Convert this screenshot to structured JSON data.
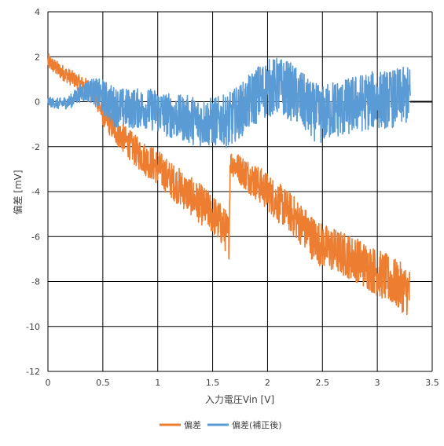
{
  "chart_data": {
    "type": "line",
    "xlabel": "入力電圧Vin [V]",
    "ylabel": "偏差 [mV]",
    "xlim": [
      0,
      3.5
    ],
    "ylim": [
      -12,
      4
    ],
    "x_ticks": [
      "0",
      "0.5",
      "1",
      "1.5",
      "2",
      "2.5",
      "3",
      "3.5"
    ],
    "y_ticks": [
      "4",
      "2",
      "0",
      "-2",
      "-4",
      "-6",
      "-8",
      "-10",
      "-12"
    ],
    "grid": true,
    "legend_position": "bottom",
    "series": [
      {
        "name": "偏差",
        "color": "#ED7D31",
        "x": [
          0,
          0.1,
          0.2,
          0.3,
          0.4,
          0.5,
          0.6,
          0.7,
          0.8,
          0.9,
          1.0,
          1.1,
          1.2,
          1.3,
          1.4,
          1.5,
          1.6,
          1.65,
          1.66,
          1.7,
          1.8,
          1.9,
          2.0,
          2.1,
          2.2,
          2.3,
          2.4,
          2.5,
          2.6,
          2.7,
          2.8,
          2.9,
          3.0,
          3.1,
          3.2,
          3.3
        ],
        "y": [
          1.8,
          1.4,
          1.1,
          0.8,
          0.6,
          -0.6,
          -1.2,
          -1.7,
          -2.2,
          -2.6,
          -2.9,
          -3.4,
          -3.8,
          -4.2,
          -4.6,
          -5.0,
          -5.6,
          -6.0,
          -2.7,
          -2.8,
          -3.2,
          -3.6,
          -4.0,
          -4.5,
          -4.9,
          -5.4,
          -6.0,
          -6.4,
          -6.6,
          -6.8,
          -7.0,
          -7.3,
          -7.6,
          -7.9,
          -8.2,
          -8.5
        ],
        "noise": [
          0.35,
          0.35,
          0.35,
          0.35,
          0.35,
          0.45,
          0.6,
          0.65,
          0.7,
          0.75,
          0.8,
          0.8,
          0.85,
          0.85,
          0.9,
          0.9,
          0.95,
          1.0,
          0.55,
          0.6,
          0.75,
          0.8,
          0.85,
          0.9,
          0.9,
          0.95,
          1.0,
          1.0,
          1.0,
          1.0,
          1.0,
          1.05,
          1.05,
          1.1,
          1.1,
          1.1
        ]
      },
      {
        "name": "偏差(補正後)",
        "color": "#5B9BD5",
        "x": [
          0,
          0.1,
          0.2,
          0.3,
          0.4,
          0.5,
          0.6,
          0.7,
          0.8,
          0.9,
          1.0,
          1.1,
          1.2,
          1.3,
          1.4,
          1.5,
          1.6,
          1.65,
          1.7,
          1.8,
          1.9,
          2.0,
          2.1,
          2.2,
          2.3,
          2.4,
          2.5,
          2.6,
          2.7,
          2.8,
          2.9,
          3.0,
          3.1,
          3.2,
          3.3
        ],
        "y": [
          0.0,
          -0.1,
          0.0,
          0.4,
          0.5,
          0.2,
          -0.2,
          -0.3,
          -0.3,
          -0.3,
          -0.4,
          -0.6,
          -0.7,
          -0.8,
          -0.9,
          -0.9,
          -0.8,
          -0.9,
          -0.6,
          -0.2,
          0.3,
          0.6,
          0.7,
          0.5,
          0.1,
          -0.4,
          -0.6,
          -0.3,
          -0.3,
          -0.1,
          0.0,
          0.1,
          0.1,
          0.2,
          0.3
        ],
        "noise": [
          0.2,
          0.25,
          0.3,
          0.4,
          0.55,
          0.8,
          0.9,
          0.9,
          0.9,
          0.9,
          1.0,
          1.0,
          1.0,
          1.1,
          1.1,
          1.1,
          1.1,
          1.3,
          1.2,
          1.2,
          1.3,
          1.3,
          1.3,
          1.3,
          1.3,
          1.3,
          1.3,
          1.3,
          1.3,
          1.3,
          1.3,
          1.3,
          1.3,
          1.3,
          1.3
        ]
      }
    ]
  }
}
